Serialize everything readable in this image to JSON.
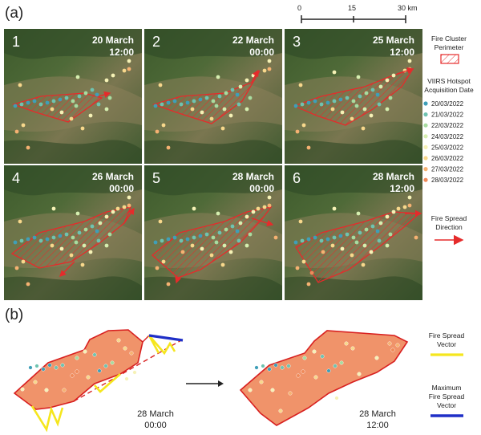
{
  "panel_a": {
    "label": "(a)",
    "scale_bar": {
      "ticks": [
        "0",
        "15",
        "30 km"
      ]
    },
    "tiles": [
      {
        "number": "1",
        "date": "20 March",
        "time": "12:00",
        "fire_front_step": 0
      },
      {
        "number": "2",
        "date": "22 March",
        "time": "00:00",
        "fire_front_step": 1
      },
      {
        "number": "3",
        "date": "25 March",
        "time": "12:00",
        "fire_front_step": 2
      },
      {
        "number": "4",
        "date": "26 March",
        "time": "00:00",
        "fire_front_step": 3
      },
      {
        "number": "5",
        "date": "28 March",
        "time": "00:00",
        "fire_front_step": 4
      },
      {
        "number": "6",
        "date": "28 March",
        "time": "12:00",
        "fire_front_step": 5
      }
    ],
    "legend": {
      "perimeter_title": [
        "Fire Cluster",
        "Perimeter"
      ],
      "hotspot_title": [
        "VIIRS Hotspot",
        "Acquisition Date"
      ],
      "hotspot_dates": [
        {
          "label": "20/03/2022",
          "color": "#3f9fb8"
        },
        {
          "label": "21/03/2022",
          "color": "#6fc3b0"
        },
        {
          "label": "22/03/2022",
          "color": "#a8dca0"
        },
        {
          "label": "24/03/2022",
          "color": "#d6efb0"
        },
        {
          "label": "25/03/2022",
          "color": "#f6f2b6"
        },
        {
          "label": "26/03/2022",
          "color": "#f8d88c"
        },
        {
          "label": "27/03/2022",
          "color": "#f6b272"
        },
        {
          "label": "28/03/2022",
          "color": "#ef8a5a"
        }
      ],
      "spread_title": [
        "Fire Spread",
        "Direction"
      ],
      "perimeter_color": "#e52b2b"
    }
  },
  "panel_b": {
    "label": "(b)",
    "before": {
      "date": "28 March",
      "time": "00:00"
    },
    "after": {
      "date": "28 March",
      "time": "12:00"
    },
    "legend": {
      "spread_vector": [
        "Fire Spread",
        "Vector"
      ],
      "max_spread_vector": [
        "Maximum",
        "Fire Spread",
        "Vector"
      ],
      "spread_vector_color": "#f5e61e",
      "max_spread_vector_color": "#1f2fc7"
    },
    "fill_color": "#f0936a"
  }
}
